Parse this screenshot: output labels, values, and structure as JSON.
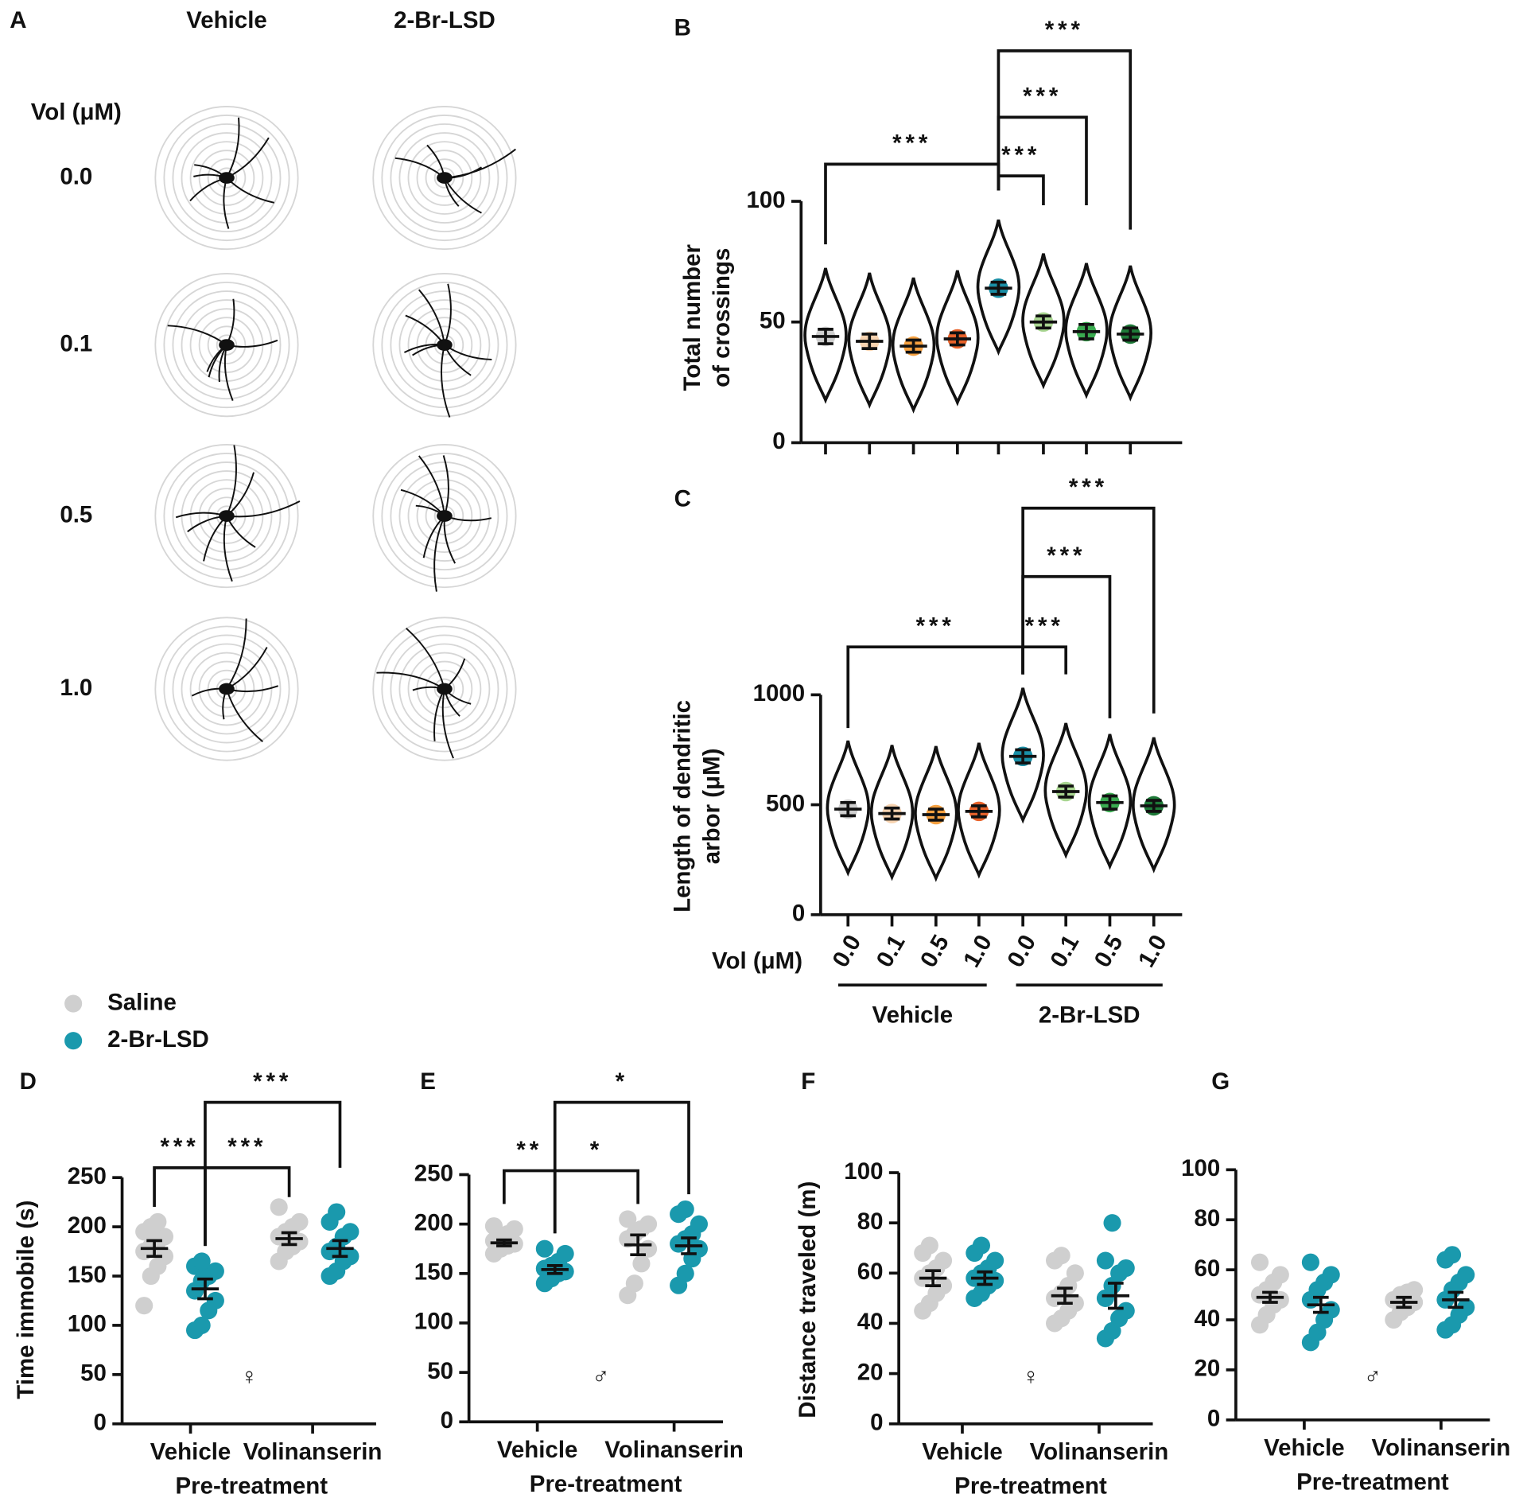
{
  "panel_a": {
    "label": "A",
    "columns": [
      "Vehicle",
      "2-Br-LSD"
    ],
    "row_header": "Vol (μM)",
    "rows": [
      "0.0",
      "0.1",
      "0.5",
      "1.0"
    ]
  },
  "legend": {
    "items": [
      {
        "name": "Saline",
        "color": "#cfcfcf"
      },
      {
        "name": "2-Br-LSD",
        "color": "#1a99ad"
      }
    ]
  },
  "chart_data": [
    {
      "type": "violin",
      "panel": "B",
      "ylabel": [
        "Total number",
        "of crossings"
      ],
      "categories": [
        null,
        null,
        null,
        null,
        null,
        null,
        null,
        null
      ],
      "values": [
        44,
        42,
        40,
        43,
        64,
        50,
        46,
        45
      ],
      "errors": [
        3,
        3,
        2.5,
        2.5,
        2.5,
        2.5,
        3,
        2.5
      ],
      "colors": [
        "#cfcfcf",
        "#f7d3b0",
        "#f5a040",
        "#e8622a",
        "#1a8fa6",
        "#a8d590",
        "#3aaa50",
        "#1e7a38"
      ],
      "ylim": [
        0,
        110
      ],
      "yticks": [
        0,
        50,
        100
      ],
      "annotations": [
        "***",
        "***",
        "***",
        "***"
      ]
    },
    {
      "type": "violin",
      "panel": "C",
      "ylabel": [
        "Length of dendritic",
        "arbor (μM)"
      ],
      "xlabel": "Vol (μM)",
      "categories": [
        "0.0",
        "0.1",
        "0.5",
        "1.0",
        "0.0",
        "0.1",
        "0.5",
        "1.0"
      ],
      "groups": [
        "Vehicle",
        "2-Br-LSD"
      ],
      "values": [
        480,
        460,
        455,
        470,
        720,
        560,
        510,
        495
      ],
      "errors": [
        30,
        25,
        25,
        25,
        30,
        25,
        30,
        25
      ],
      "colors": [
        "#cfcfcf",
        "#f7d3b0",
        "#f5a040",
        "#e8622a",
        "#1a8fa6",
        "#a8d590",
        "#3aaa50",
        "#1e7a38"
      ],
      "ylim": [
        0,
        1100
      ],
      "yticks": [
        0,
        500,
        1000
      ],
      "annotations": [
        "***",
        "***",
        "***",
        "***"
      ]
    },
    {
      "type": "strip",
      "panel": "D",
      "ylabel": "Time immobile (s)",
      "xlabel": "Pre-treatment",
      "symbol": "♀",
      "categories": [
        "Vehicle",
        "Volinanserin"
      ],
      "ylim": [
        0,
        250
      ],
      "yticks": [
        0,
        50,
        100,
        150,
        200,
        250
      ],
      "series": [
        {
          "name": "Saline",
          "color": "#cfcfcf",
          "values": [
            178,
            188
          ],
          "errors": [
            8,
            6
          ],
          "points": [
            [
              120,
              150,
              160,
              170,
              175,
              180,
              185,
              190,
              195,
              200,
              205
            ],
            [
              165,
              175,
              180,
              185,
              190,
              195,
              200,
              205,
              220
            ]
          ]
        },
        {
          "name": "2-Br-LSD",
          "color": "#1a99ad",
          "values": [
            137,
            178
          ],
          "errors": [
            10,
            8
          ],
          "points": [
            [
              95,
              100,
              115,
              125,
              135,
              145,
              150,
              155,
              160,
              165
            ],
            [
              150,
              155,
              165,
              170,
              175,
              180,
              190,
              195,
              205,
              215
            ]
          ]
        }
      ],
      "annotations": [
        "***",
        "***",
        "***"
      ]
    },
    {
      "type": "strip",
      "panel": "E",
      "xlabel": "Pre-treatment",
      "symbol": "♂",
      "categories": [
        "Vehicle",
        "Volinanserin"
      ],
      "ylim": [
        0,
        250
      ],
      "yticks": [
        0,
        50,
        100,
        150,
        200,
        250
      ],
      "series": [
        {
          "color": "#cfcfcf",
          "values": [
            181,
            179
          ],
          "errors": [
            3,
            10
          ],
          "points": [
            [
              170,
              175,
              178,
              180,
              183,
              186,
              190,
              195,
              198
            ],
            [
              128,
              140,
              160,
              175,
              185,
              190,
              195,
              200,
              205
            ]
          ]
        },
        {
          "color": "#1a99ad",
          "values": [
            154,
            178
          ],
          "errors": [
            4,
            8
          ],
          "points": [
            [
              140,
              145,
              150,
              152,
              155,
              158,
              162,
              170,
              175
            ],
            [
              138,
              150,
              165,
              175,
              180,
              185,
              190,
              200,
              210,
              215
            ]
          ]
        }
      ],
      "annotations": [
        "**",
        "*",
        "*"
      ]
    },
    {
      "type": "strip",
      "panel": "F",
      "ylabel": "Distance traveled (m)",
      "xlabel": "Pre-treatment",
      "symbol": "♀",
      "categories": [
        "Vehicle",
        "Volinanserin"
      ],
      "ylim": [
        0,
        100
      ],
      "yticks": [
        0,
        20,
        40,
        60,
        80,
        100
      ],
      "series": [
        {
          "color": "#cfcfcf",
          "values": [
            58,
            51
          ],
          "errors": [
            3,
            3
          ],
          "points": [
            [
              45,
              48,
              52,
              55,
              58,
              60,
              62,
              65,
              68,
              71
            ],
            [
              40,
              42,
              45,
              48,
              50,
              52,
              55,
              60,
              65,
              67
            ]
          ]
        },
        {
          "color": "#1a99ad",
          "values": [
            58,
            51
          ],
          "errors": [
            2.5,
            5
          ],
          "points": [
            [
              50,
              52,
              55,
              57,
              58,
              60,
              62,
              65,
              68,
              71
            ],
            [
              34,
              37,
              42,
              45,
              50,
              55,
              60,
              62,
              65,
              80
            ]
          ]
        }
      ]
    },
    {
      "type": "strip",
      "panel": "G",
      "xlabel": "Pre-treatment",
      "symbol": "♂",
      "categories": [
        "Vehicle",
        "Volinanserin"
      ],
      "ylim": [
        0,
        100
      ],
      "yticks": [
        0,
        20,
        40,
        60,
        80,
        100
      ],
      "series": [
        {
          "color": "#cfcfcf",
          "values": [
            49,
            47
          ],
          "errors": [
            2,
            2
          ],
          "points": [
            [
              38,
              42,
              46,
              48,
              50,
              52,
              55,
              58,
              63
            ],
            [
              40,
              43,
              45,
              47,
              48,
              50,
              51,
              52
            ]
          ]
        },
        {
          "color": "#1a99ad",
          "values": [
            46,
            48
          ],
          "errors": [
            3,
            3
          ],
          "points": [
            [
              31,
              35,
              40,
              44,
              48,
              52,
              55,
              58,
              63
            ],
            [
              36,
              38,
              42,
              45,
              48,
              52,
              55,
              58,
              64,
              66
            ]
          ]
        }
      ]
    }
  ]
}
